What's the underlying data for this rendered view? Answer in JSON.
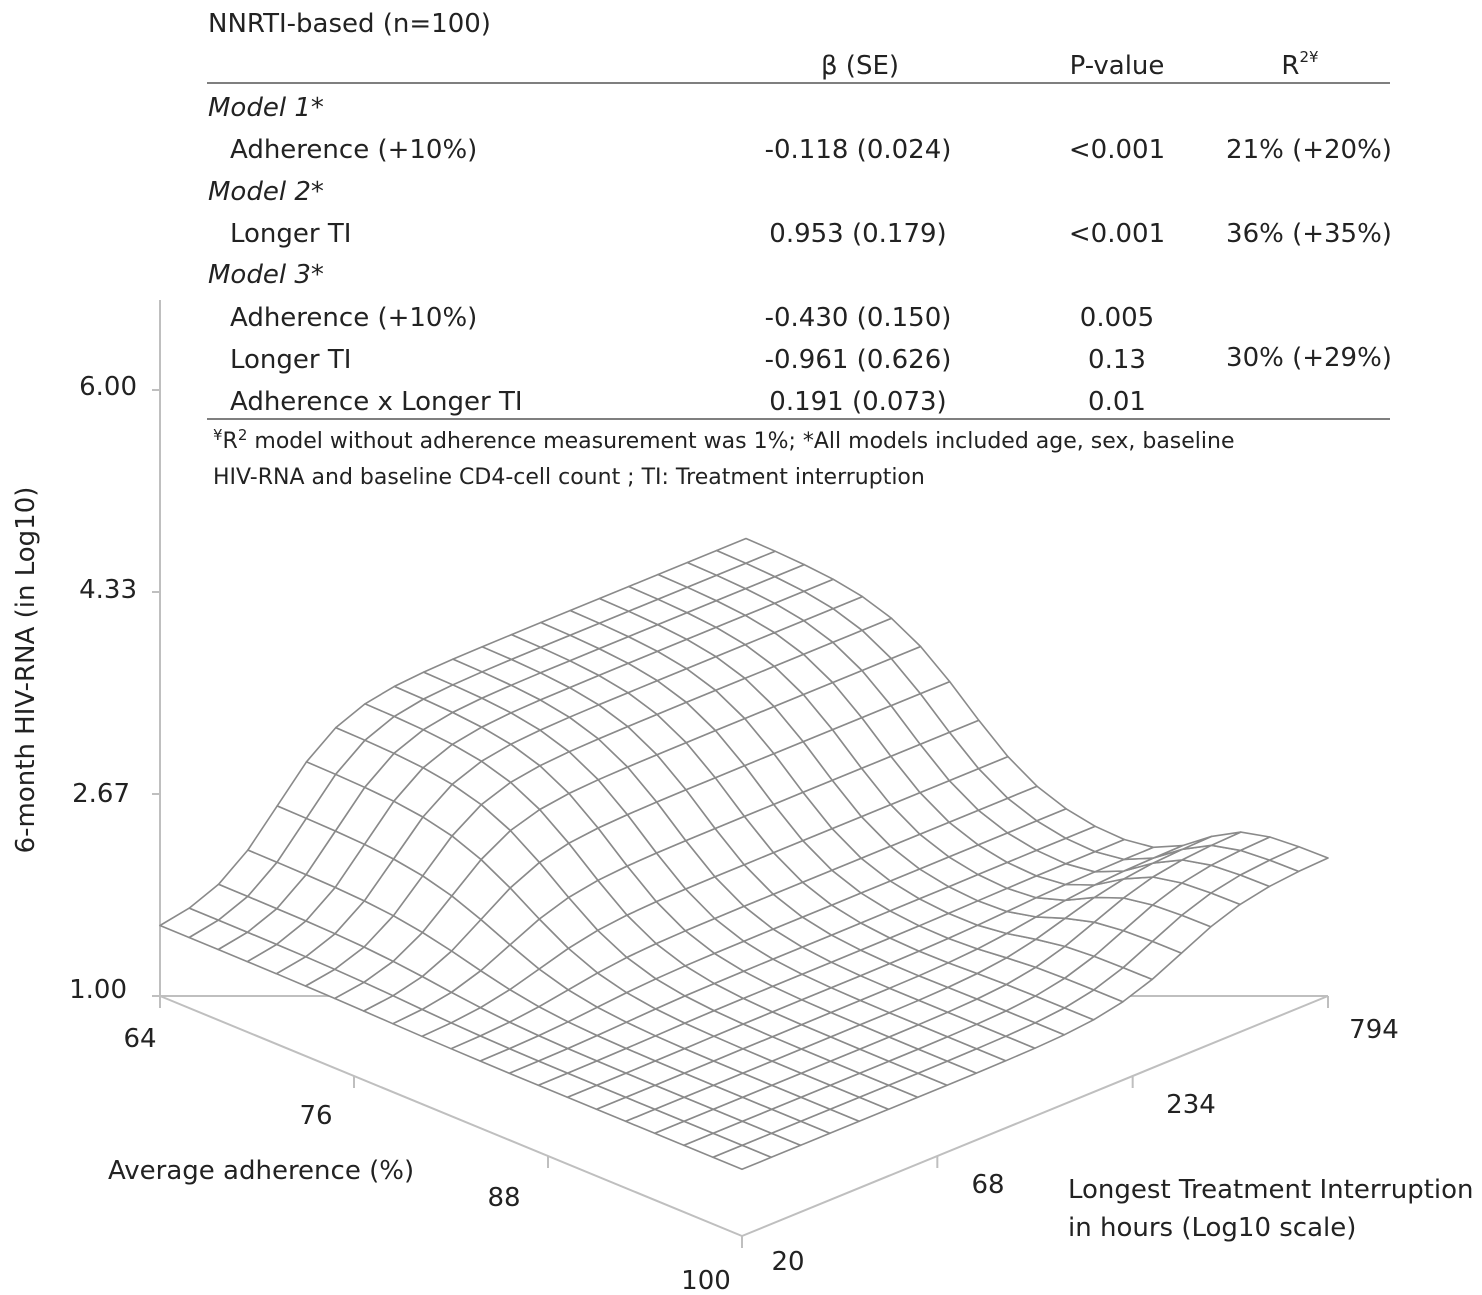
{
  "table": {
    "title": "NNRTI-based (n=100)",
    "headers": {
      "beta": "β (SE)",
      "p": "P-value",
      "r2": "R",
      "r2_sup": "2¥"
    },
    "rows": [
      {
        "kind": "model",
        "label": "Model 1*"
      },
      {
        "kind": "var",
        "label": "Adherence (+10%)",
        "beta": "-0.118 (0.024)",
        "p": "<0.001",
        "r2": "21% (+20%)"
      },
      {
        "kind": "model",
        "label": "Model 2*"
      },
      {
        "kind": "var",
        "label": "Longer TI",
        "beta": "0.953 (0.179)",
        "p": "<0.001",
        "r2": "36% (+35%)"
      },
      {
        "kind": "model",
        "label": "Model 3*"
      },
      {
        "kind": "var",
        "label": "Adherence (+10%)",
        "beta": "-0.430 (0.150)",
        "p": "0.005",
        "r2": ""
      },
      {
        "kind": "var",
        "label": "Longer TI",
        "beta": "-0.961 (0.626)",
        "p": "0.13",
        "r2": "30% (+29%)"
      },
      {
        "kind": "var",
        "label": "Adherence x Longer TI",
        "beta": "0.191 (0.073)",
        "p": "0.01",
        "r2": ""
      }
    ],
    "footnote_sup": "¥",
    "footnote_r": "R",
    "footnote_r_sup": "2",
    "footnote_line1": " model without adherence measurement was 1%; *All models included age, sex, baseline",
    "footnote_line2": "HIV-RNA and baseline CD4-cell count ; TI: Treatment interruption"
  },
  "chart_data": {
    "type": "surface",
    "z_axis": {
      "label": "6-month HIV-RNA (in Log10)",
      "ticks": [
        "6.00",
        "4.33",
        "2.67",
        "1.00"
      ],
      "range": [
        1.0,
        6.0
      ]
    },
    "x_axis": {
      "label": "Average adherence (%)",
      "ticks": [
        "64",
        "76",
        "88",
        "100"
      ],
      "range": [
        64,
        100
      ]
    },
    "y_axis": {
      "label_line1": "Longest Treatment Interruption",
      "label_line2": "in hours (Log10 scale)",
      "ticks": [
        "20",
        "68",
        "234",
        "794"
      ],
      "scale": "log10"
    },
    "grid": {
      "adherence_steps": 20,
      "ti_steps": 20
    },
    "surface_color": "#8a8a8a",
    "axis_color": "#bfbfbf"
  }
}
